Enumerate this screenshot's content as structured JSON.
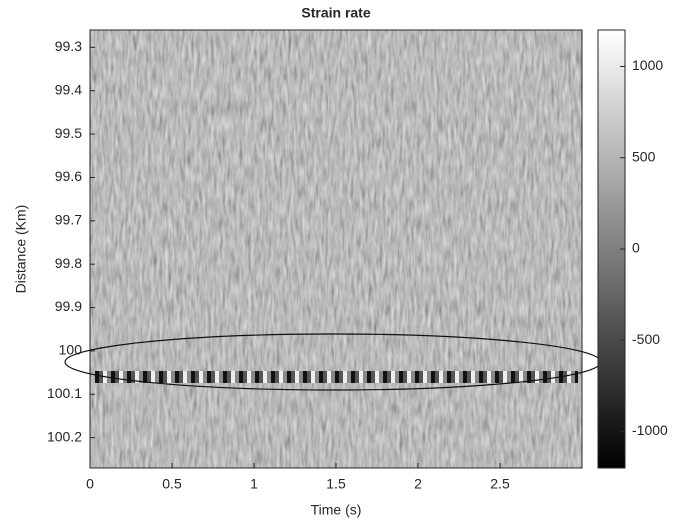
{
  "chart_data": {
    "type": "heatmap",
    "title": "Strain rate",
    "xlabel": "Time (s)",
    "ylabel": "Distance (Km)",
    "xlim": [
      0,
      3
    ],
    "xticks": [
      0,
      0.5,
      1,
      1.5,
      2,
      2.5
    ],
    "ylim": [
      99.26,
      100.27
    ],
    "yreverse": true,
    "yticks": [
      99.3,
      99.4,
      99.5,
      99.6,
      99.7,
      99.8,
      99.9,
      100,
      100.1,
      100.2
    ],
    "colormap": "gray",
    "clim": [
      -1200,
      1200
    ],
    "cticks": [
      -1000,
      -500,
      0,
      500,
      1000
    ]
  }
}
